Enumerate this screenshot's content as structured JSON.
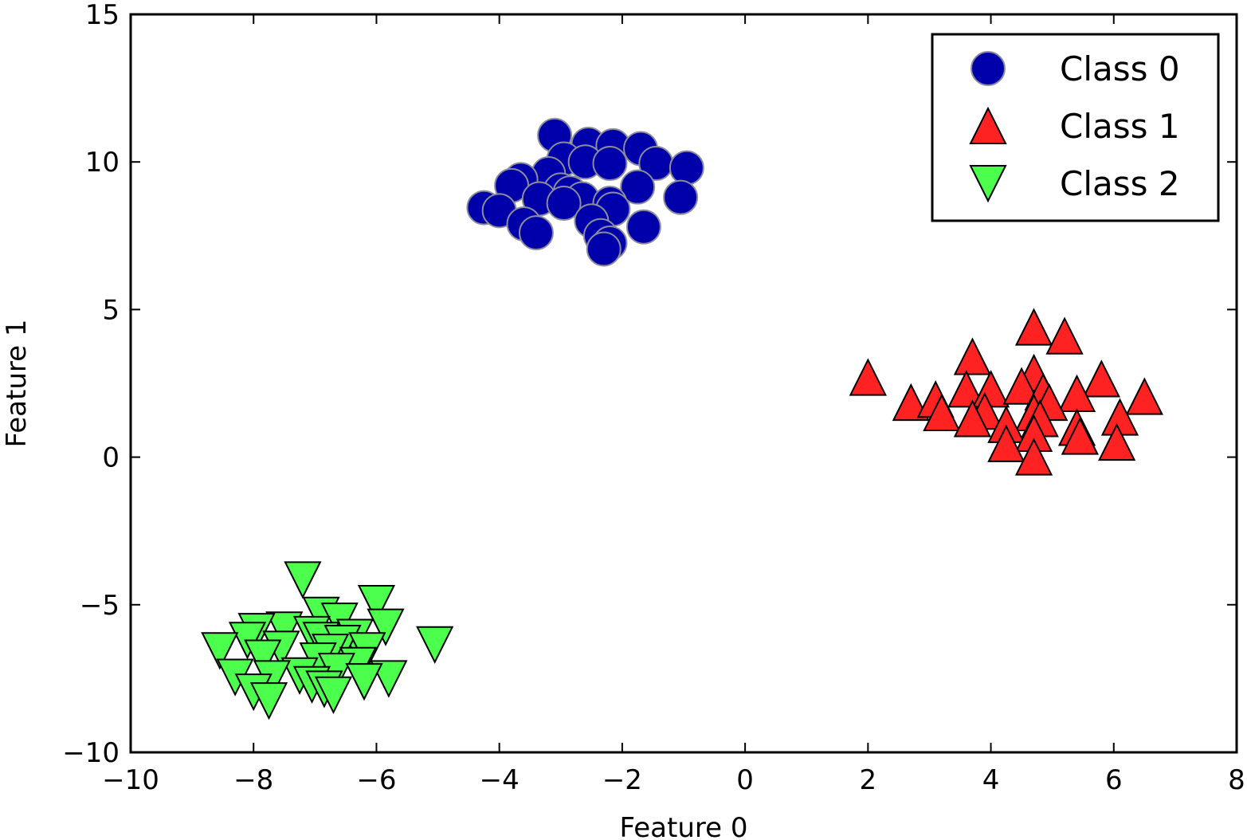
{
  "chart_data": {
    "type": "scatter",
    "title": "",
    "xlabel": "Feature 0",
    "ylabel": "Feature 1",
    "xlim": [
      -10,
      8
    ],
    "ylim": [
      -10,
      15
    ],
    "xticks": [
      -10,
      -8,
      -6,
      -4,
      -2,
      0,
      2,
      4,
      6,
      8
    ],
    "yticks": [
      -10,
      -5,
      0,
      5,
      10,
      15
    ],
    "xtick_labels": [
      "−10",
      "−8",
      "−6",
      "−4",
      "−2",
      "0",
      "2",
      "4",
      "6",
      "8"
    ],
    "ytick_labels": [
      "−10",
      "−5",
      "0",
      "5",
      "10",
      "15"
    ],
    "grid": false,
    "legend_position": "top-right",
    "series": [
      {
        "name": "Class 0",
        "marker": "circle",
        "color": "#0000aa",
        "edge": "#8c8c9c",
        "points": [
          [
            -3.1,
            10.9
          ],
          [
            -2.55,
            10.6
          ],
          [
            -2.15,
            10.55
          ],
          [
            -1.7,
            10.45
          ],
          [
            -2.95,
            10.1
          ],
          [
            -2.6,
            10.0
          ],
          [
            -2.2,
            9.95
          ],
          [
            -1.45,
            9.95
          ],
          [
            -0.95,
            9.8
          ],
          [
            -3.2,
            9.6
          ],
          [
            -3.65,
            9.4
          ],
          [
            -3.8,
            9.2
          ],
          [
            -1.75,
            9.15
          ],
          [
            -3.0,
            9.05
          ],
          [
            -2.85,
            8.95
          ],
          [
            -3.35,
            8.75
          ],
          [
            -2.65,
            8.75
          ],
          [
            -2.95,
            8.6
          ],
          [
            -2.2,
            8.6
          ],
          [
            -1.05,
            8.8
          ],
          [
            -4.25,
            8.45
          ],
          [
            -2.15,
            8.4
          ],
          [
            -4.0,
            8.35
          ],
          [
            -3.6,
            7.9
          ],
          [
            -2.5,
            8.0
          ],
          [
            -1.65,
            7.8
          ],
          [
            -3.4,
            7.6
          ],
          [
            -2.35,
            7.5
          ],
          [
            -2.2,
            7.25
          ],
          [
            -2.3,
            7.05
          ]
        ]
      },
      {
        "name": "Class 1",
        "marker": "triangle-up",
        "color": "#ff2222",
        "edge": "#000000",
        "points": [
          [
            4.7,
            4.4
          ],
          [
            5.2,
            4.1
          ],
          [
            3.7,
            3.4
          ],
          [
            2.0,
            2.7
          ],
          [
            4.7,
            2.85
          ],
          [
            5.8,
            2.65
          ],
          [
            3.6,
            2.3
          ],
          [
            4.0,
            2.3
          ],
          [
            4.5,
            2.4
          ],
          [
            4.85,
            2.2
          ],
          [
            5.4,
            2.15
          ],
          [
            6.5,
            2.05
          ],
          [
            2.7,
            1.85
          ],
          [
            3.1,
            1.95
          ],
          [
            4.95,
            1.85
          ],
          [
            3.2,
            1.5
          ],
          [
            3.9,
            1.55
          ],
          [
            4.7,
            1.5
          ],
          [
            6.1,
            1.35
          ],
          [
            3.7,
            1.3
          ],
          [
            4.8,
            1.3
          ],
          [
            4.25,
            1.1
          ],
          [
            5.4,
            1.0
          ],
          [
            4.7,
            0.8
          ],
          [
            5.45,
            0.7
          ],
          [
            6.05,
            0.5
          ],
          [
            4.25,
            0.45
          ],
          [
            4.7,
            0.0
          ]
        ]
      },
      {
        "name": "Class 2",
        "marker": "triangle-down",
        "color": "#4dff4d",
        "edge": "#000000",
        "points": [
          [
            -7.2,
            -4.15
          ],
          [
            -6.0,
            -4.95
          ],
          [
            -6.9,
            -5.35
          ],
          [
            -6.6,
            -5.55
          ],
          [
            -5.85,
            -5.75
          ],
          [
            -7.5,
            -5.85
          ],
          [
            -7.95,
            -5.9
          ],
          [
            -7.05,
            -6.0
          ],
          [
            -8.1,
            -6.2
          ],
          [
            -6.35,
            -6.1
          ],
          [
            -6.9,
            -6.2
          ],
          [
            -6.55,
            -6.3
          ],
          [
            -5.05,
            -6.35
          ],
          [
            -8.55,
            -6.55
          ],
          [
            -7.55,
            -6.5
          ],
          [
            -6.75,
            -6.6
          ],
          [
            -6.15,
            -6.55
          ],
          [
            -7.85,
            -6.8
          ],
          [
            -6.95,
            -6.9
          ],
          [
            -6.3,
            -7.05
          ],
          [
            -7.25,
            -7.4
          ],
          [
            -6.65,
            -7.25
          ],
          [
            -8.3,
            -7.45
          ],
          [
            -7.7,
            -7.5
          ],
          [
            -5.8,
            -7.5
          ],
          [
            -6.2,
            -7.6
          ],
          [
            -7.05,
            -7.7
          ],
          [
            -6.85,
            -7.85
          ],
          [
            -8.0,
            -7.95
          ],
          [
            -6.7,
            -8.05
          ],
          [
            -7.75,
            -8.25
          ]
        ]
      }
    ]
  }
}
